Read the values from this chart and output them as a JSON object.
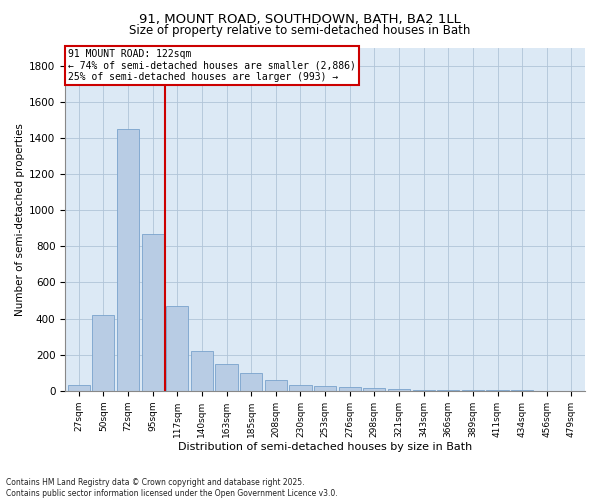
{
  "title1": "91, MOUNT ROAD, SOUTHDOWN, BATH, BA2 1LL",
  "title2": "Size of property relative to semi-detached houses in Bath",
  "xlabel": "Distribution of semi-detached houses by size in Bath",
  "ylabel": "Number of semi-detached properties",
  "footnote1": "Contains HM Land Registry data © Crown copyright and database right 2025.",
  "footnote2": "Contains public sector information licensed under the Open Government Licence v3.0.",
  "annotation_title": "91 MOUNT ROAD: 122sqm",
  "annotation_line1": "← 74% of semi-detached houses are smaller (2,886)",
  "annotation_line2": "25% of semi-detached houses are larger (993) →",
  "bar_color": "#b8cce4",
  "bar_edge_color": "#7aa3cc",
  "vline_color": "#cc0000",
  "annotation_box_color": "#ffffff",
  "annotation_box_edge": "#cc0000",
  "background_color": "#ffffff",
  "plot_bg_color": "#dce9f5",
  "grid_color": "#b0c4d8",
  "categories": [
    "27sqm",
    "50sqm",
    "72sqm",
    "95sqm",
    "117sqm",
    "140sqm",
    "163sqm",
    "185sqm",
    "208sqm",
    "230sqm",
    "253sqm",
    "276sqm",
    "298sqm",
    "321sqm",
    "343sqm",
    "366sqm",
    "389sqm",
    "411sqm",
    "434sqm",
    "456sqm",
    "479sqm"
  ],
  "values": [
    30,
    420,
    1450,
    870,
    470,
    220,
    150,
    100,
    60,
    35,
    25,
    20,
    15,
    10,
    5,
    5,
    3,
    2,
    2,
    1,
    1
  ],
  "vline_bin_index": 4,
  "ylim": [
    0,
    1900
  ],
  "yticks": [
    0,
    200,
    400,
    600,
    800,
    1000,
    1200,
    1400,
    1600,
    1800
  ],
  "title1_fontsize": 9.5,
  "title2_fontsize": 8.5,
  "xlabel_fontsize": 8,
  "ylabel_fontsize": 7.5,
  "xtick_fontsize": 6.5,
  "ytick_fontsize": 7.5,
  "ann_fontsize": 7,
  "footnote_fontsize": 5.5
}
